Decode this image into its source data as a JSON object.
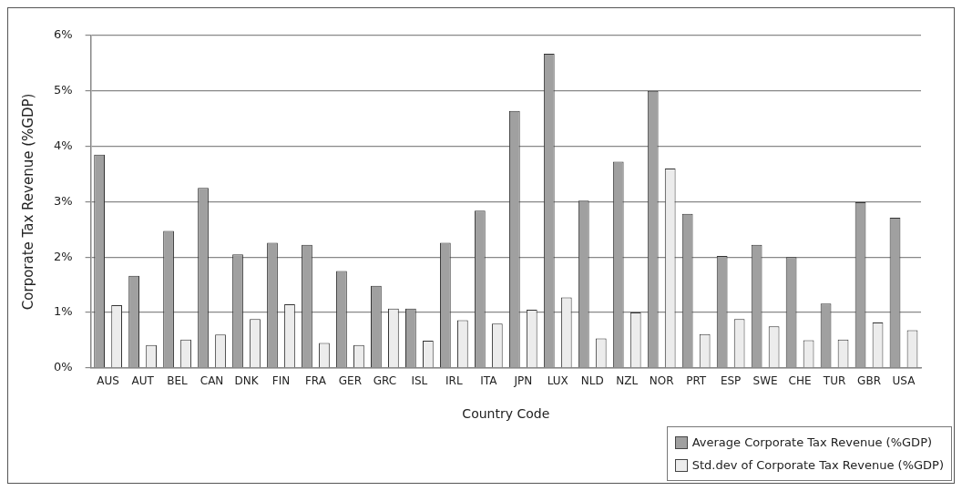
{
  "chart_data": {
    "type": "bar",
    "xlabel": "Country Code",
    "ylabel": "Corporate Tax Revenue (%GDP)",
    "categories": [
      "AUS",
      "AUT",
      "BEL",
      "CAN",
      "DNK",
      "FIN",
      "FRA",
      "GER",
      "GRC",
      "ISL",
      "IRL",
      "ITA",
      "JPN",
      "LUX",
      "NLD",
      "NZL",
      "NOR",
      "PRT",
      "ESP",
      "SWE",
      "CHE",
      "TUR",
      "GBR",
      "USA"
    ],
    "series": [
      {
        "name": "Average Corporate Tax Revenue (%GDP)",
        "color": "#a0a0a0",
        "values": [
          3.85,
          1.66,
          2.47,
          3.25,
          2.05,
          2.26,
          2.22,
          1.75,
          1.48,
          1.07,
          2.26,
          2.84,
          4.64,
          5.67,
          3.02,
          3.72,
          5.0,
          2.78,
          2.02,
          2.22,
          2.0,
          1.16,
          2.99,
          2.71
        ]
      },
      {
        "name": "Std.dev of Corporate Tax Revenue (%GDP)",
        "color": "#ececec",
        "values": [
          1.13,
          0.41,
          0.51,
          0.6,
          0.88,
          1.15,
          0.45,
          0.41,
          1.07,
          0.49,
          0.86,
          0.8,
          1.05,
          1.27,
          0.53,
          1.0,
          3.6,
          0.61,
          0.88,
          0.75,
          0.5,
          0.51,
          0.82,
          0.68
        ]
      }
    ],
    "ylim": [
      0,
      6
    ],
    "yticks": [
      {
        "value": 0,
        "label": "0%"
      },
      {
        "value": 1,
        "label": "1%"
      },
      {
        "value": 2,
        "label": "2%"
      },
      {
        "value": 3,
        "label": "3%"
      },
      {
        "value": 4,
        "label": "4%"
      },
      {
        "value": 5,
        "label": "5%"
      },
      {
        "value": 6,
        "label": "6%"
      }
    ],
    "grid": "y",
    "legend": "bottom right"
  }
}
